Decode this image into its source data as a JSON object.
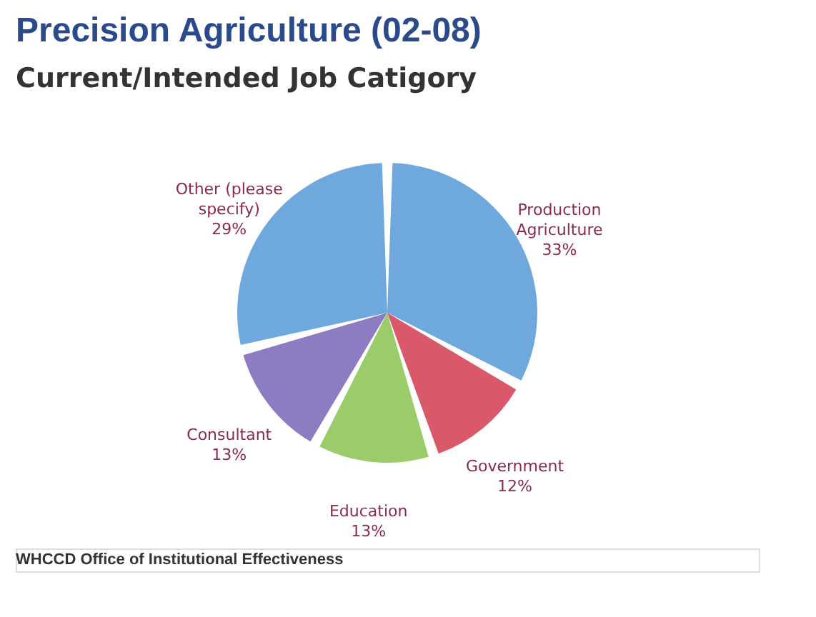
{
  "chart_data": {
    "type": "pie",
    "title": "Precision Agriculture (02-08)",
    "subtitle": "Current/Intended Job Catigory",
    "categories": [
      "Production Agriculture",
      "Government",
      "Education",
      "Consultant",
      "Other (please specify)"
    ],
    "values": [
      33,
      12,
      13,
      13,
      29
    ],
    "colors": [
      "#6fa8dc",
      "#d9596a",
      "#9ccb6a",
      "#8e7cc3",
      "#6fa8dc"
    ],
    "value_labels": [
      "33%",
      "12%",
      "13%",
      "13%",
      "29%"
    ],
    "legend": false,
    "annotations": [
      "WHCCD Office of Institutional Effectiveness"
    ]
  }
}
